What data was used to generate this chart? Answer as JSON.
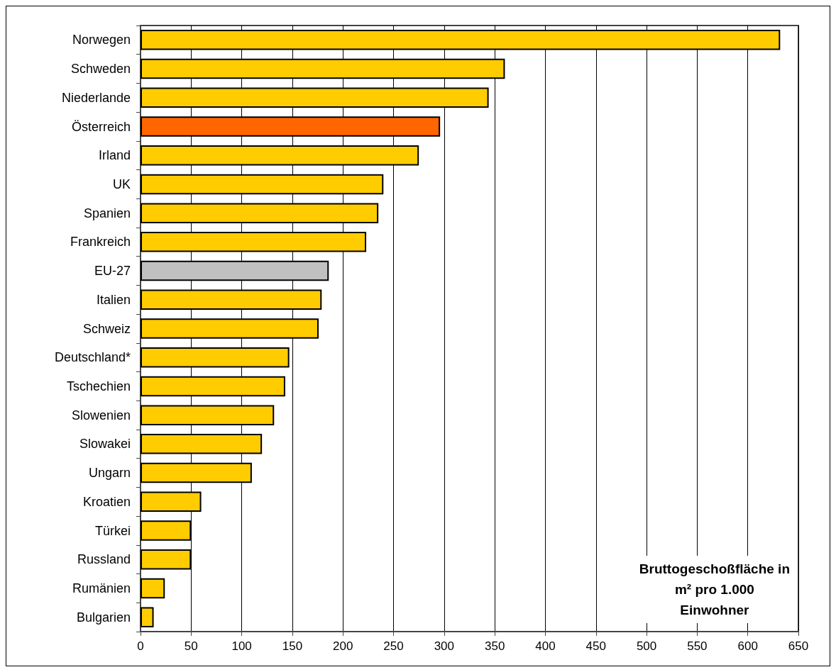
{
  "chart_data": {
    "type": "bar",
    "orientation": "horizontal",
    "categories": [
      "Norwegen",
      "Schweden",
      "Niederlande",
      "Österreich",
      "Irland",
      "UK",
      "Spanien",
      "Frankreich",
      "EU-27",
      "Italien",
      "Schweiz",
      "Deutschland*",
      "Tschechien",
      "Slowenien",
      "Slowakei",
      "Ungarn",
      "Kroatien",
      "Türkei",
      "Russland",
      "Rumänien",
      "Bulgarien"
    ],
    "values": [
      632,
      360,
      344,
      296,
      275,
      240,
      235,
      223,
      186,
      179,
      176,
      147,
      143,
      132,
      120,
      110,
      60,
      50,
      50,
      24,
      13
    ],
    "colors": [
      "#ffcc00",
      "#ffcc00",
      "#ffcc00",
      "#ff6600",
      "#ffcc00",
      "#ffcc00",
      "#ffcc00",
      "#ffcc00",
      "#c0c0c0",
      "#ffcc00",
      "#ffcc00",
      "#ffcc00",
      "#ffcc00",
      "#ffcc00",
      "#ffcc00",
      "#ffcc00",
      "#ffcc00",
      "#ffcc00",
      "#ffcc00",
      "#ffcc00",
      "#ffcc00"
    ],
    "xlim": [
      0,
      650
    ],
    "xticks": [
      0,
      50,
      100,
      150,
      200,
      250,
      300,
      350,
      400,
      450,
      500,
      550,
      600,
      650
    ],
    "grid": "x",
    "annotations": [
      "Bruttogeschoßfläche in\nm² pro 1.000\nEinwohner"
    ]
  }
}
